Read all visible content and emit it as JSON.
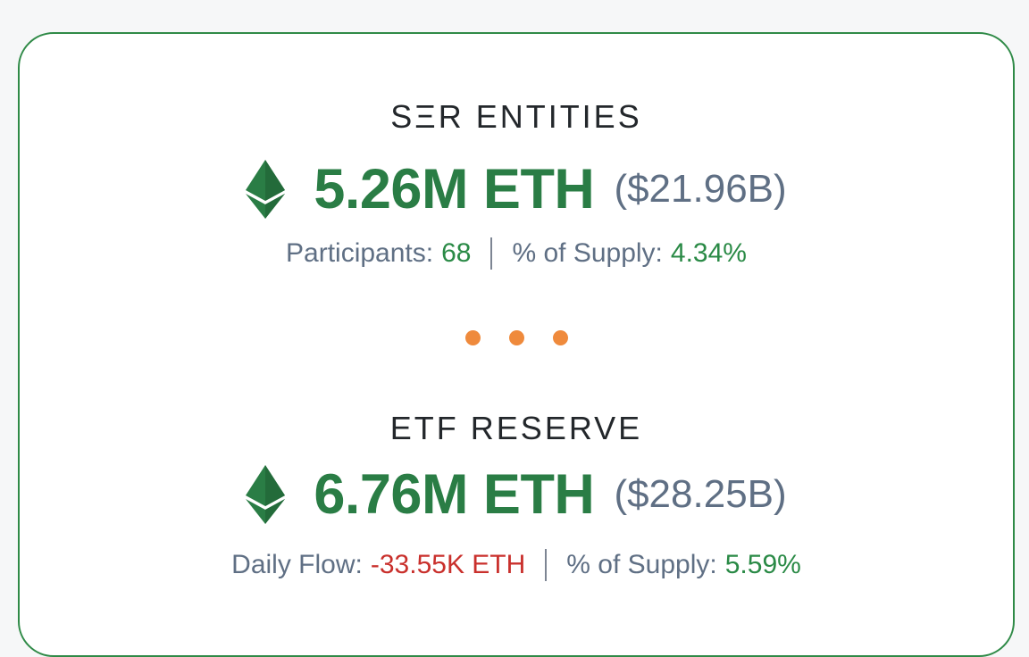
{
  "colors": {
    "border": "#2f8a47",
    "amount_green": "#2a7d45",
    "value_green": "#2a8a46",
    "negative_red": "#c9302c",
    "muted_text": "#5f6f84",
    "dot_orange": "#ef8a3c"
  },
  "sections": [
    {
      "title": "SΞR ENTITIES",
      "icon": "ethereum-icon",
      "amount": "5.26M ETH",
      "usd": "($21.96B)",
      "stat1_label": "Participants:",
      "stat1_value": "68",
      "stat2_label": "% of Supply:",
      "stat2_value": "4.34%"
    },
    {
      "title": "ETF RESERVE",
      "icon": "ethereum-icon",
      "amount": "6.76M ETH",
      "usd": "($28.25B)",
      "stat1_label": "Daily Flow:",
      "stat1_value": "-33.55K ETH",
      "stat2_label": "% of Supply:",
      "stat2_value": "5.59%"
    }
  ],
  "divider_icon": "more-dots-icon"
}
